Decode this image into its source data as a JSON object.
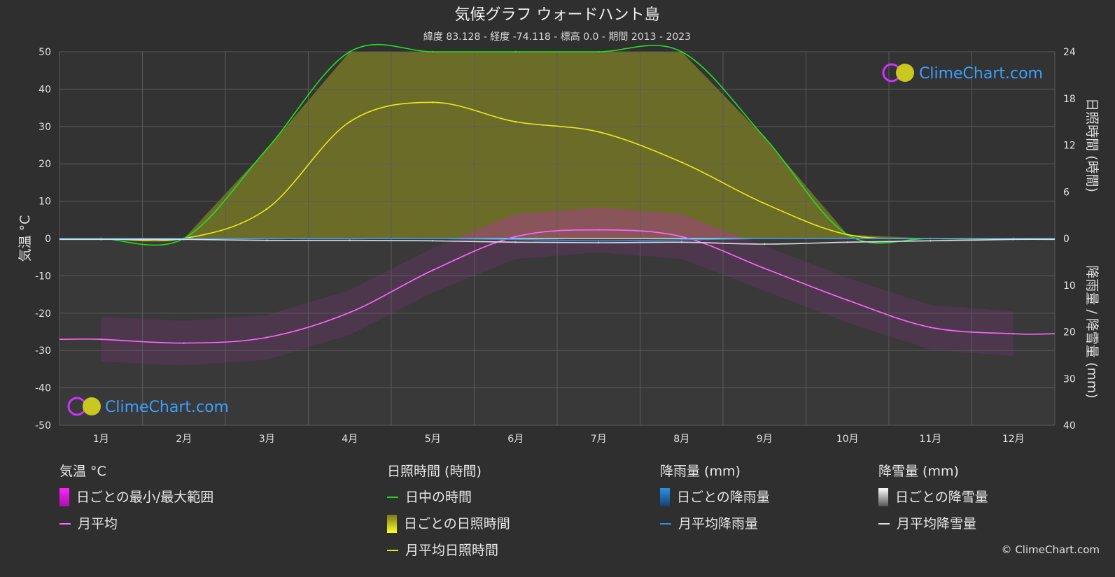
{
  "title": "気候グラフ ウォードハント島",
  "subtitle": "緯度 83.128 - 経度 -74.118 - 標高 0.0 - 期間 2013 - 2023",
  "watermark": "ClimeChart.com",
  "copyright": "© ClimeChart.com",
  "colors": {
    "background": "#2f2f2f",
    "grid": "#5a5a5a",
    "daylight": "#22dd22",
    "sunshine_avg": "#e8e820",
    "sunshine_fill": "#9a9a20",
    "temp_avg": "#ff66ff",
    "temp_range": "#cc22cc",
    "rain": "#2a90e8",
    "snow": "#dddddd",
    "logo_text": "#3aa0ff"
  },
  "chart_data": {
    "type": "line",
    "categories": [
      "1月",
      "2月",
      "3月",
      "4月",
      "5月",
      "6月",
      "7月",
      "8月",
      "9月",
      "10月",
      "11月",
      "12月"
    ],
    "left_axis": {
      "label": "気温 °C",
      "ylim": [
        -50,
        50
      ],
      "ticks": [
        50,
        40,
        30,
        20,
        10,
        0,
        -10,
        -20,
        -30,
        -40,
        -50
      ]
    },
    "right_axis_top": {
      "label": "日照時間 (時間)",
      "ylim": [
        0,
        24
      ],
      "ticks": [
        24,
        18,
        12,
        6,
        0
      ]
    },
    "right_axis_bottom": {
      "label": "降雨量 / 降雪量 (mm)",
      "ylim": [
        0,
        40
      ],
      "ticks": [
        0,
        10,
        20,
        30,
        40
      ]
    },
    "grid": true,
    "series": [
      {
        "name": "日中の時間",
        "axis": "sun",
        "values": [
          0,
          0,
          11.5,
          24,
          24,
          24,
          24,
          24,
          13,
          0.5,
          0,
          0
        ]
      },
      {
        "name": "月平均日照時間",
        "axis": "sun",
        "values": [
          0,
          0,
          3.8,
          15,
          17.5,
          15,
          13.7,
          9.8,
          4.5,
          0.5,
          0,
          0
        ]
      },
      {
        "name": "月平均",
        "axis": "temp",
        "values": [
          -27,
          -28,
          -26.5,
          -19.8,
          -8.5,
          0.5,
          2.3,
          0.5,
          -8,
          -16.5,
          -23.8,
          -25.5
        ]
      },
      {
        "name": "月平均降雨量",
        "axis": "precip",
        "values": [
          0,
          0,
          0,
          0,
          0,
          0.2,
          0.5,
          0.3,
          0,
          0,
          0,
          0
        ]
      },
      {
        "name": "月平均降雪量",
        "axis": "precip",
        "values": [
          0.2,
          0.2,
          0.4,
          0.4,
          0.5,
          0.8,
          0.9,
          0.8,
          1.2,
          0.8,
          0.5,
          0.2
        ]
      }
    ]
  },
  "legend": {
    "temperature": {
      "title": "気温 °C",
      "items": [
        "日ごとの最小/最大範囲",
        "月平均"
      ]
    },
    "sunshine": {
      "title": "日照時間 (時間)",
      "items": [
        "日中の時間",
        "日ごとの日照時間",
        "月平均日照時間"
      ]
    },
    "rain": {
      "title": "降雨量 (mm)",
      "items": [
        "日ごとの降雨量",
        "月平均降雨量"
      ]
    },
    "snow": {
      "title": "降雪量 (mm)",
      "items": [
        "日ごとの降雪量",
        "月平均降雪量"
      ]
    }
  }
}
